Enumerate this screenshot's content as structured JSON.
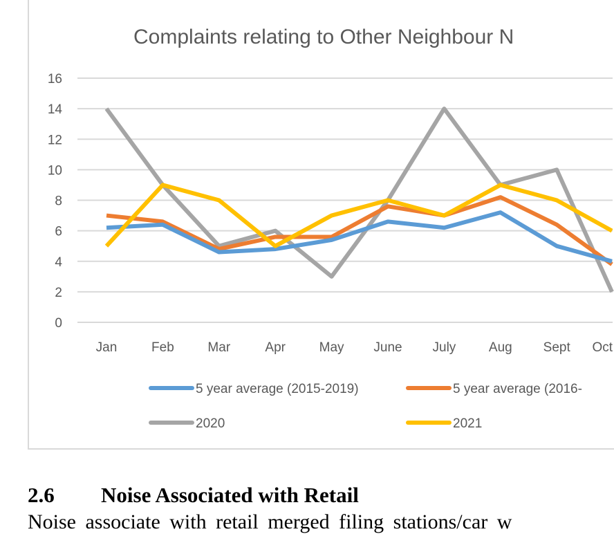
{
  "chart_data": {
    "type": "line",
    "title": "Complaints relating to Other Neighbour N",
    "categories": [
      "Jan",
      "Feb",
      "Mar",
      "Apr",
      "May",
      "June",
      "July",
      "Aug",
      "Sept",
      "Oct"
    ],
    "ylim": [
      0,
      16
    ],
    "yticks": [
      "0",
      "2",
      "4",
      "6",
      "8",
      "10",
      "12",
      "14",
      "16"
    ],
    "grid": true,
    "legend_position": "bottom",
    "series": [
      {
        "name": "5 year average (2015-2019)",
        "color": "#5b9bd5",
        "values": [
          6.2,
          6.4,
          4.6,
          4.8,
          5.4,
          6.6,
          6.2,
          7.2,
          5.0,
          4.0
        ]
      },
      {
        "name": "5 year average (2016-",
        "color": "#ed7d31",
        "values": [
          7.0,
          6.6,
          4.8,
          5.6,
          5.6,
          7.6,
          7.0,
          8.2,
          6.4,
          3.8
        ]
      },
      {
        "name": "2020",
        "color": "#a5a5a5",
        "values": [
          14,
          9,
          5,
          6,
          3,
          8,
          14,
          9,
          10,
          2
        ]
      },
      {
        "name": "2021",
        "color": "#ffc000",
        "values": [
          5,
          9,
          8,
          5,
          7,
          8,
          7,
          9,
          8,
          6
        ]
      }
    ]
  },
  "section": {
    "number": "2.6",
    "title": "Noise Associated with Retail"
  },
  "body_text": "Noise associate with retail merged filing stations/car w"
}
